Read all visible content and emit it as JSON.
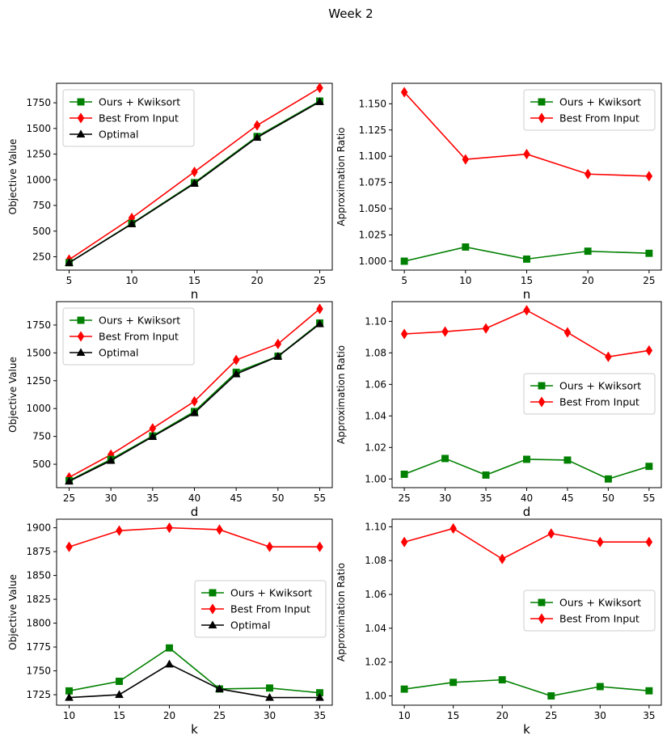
{
  "suptitle": "Week 2",
  "chart_data": [
    {
      "type": "line",
      "xlabel": "n",
      "ylabel": "Objective Value",
      "xlim": [
        4.0,
        26.0
      ],
      "ylim": [
        120,
        1940
      ],
      "xticks": [
        5,
        10,
        15,
        20,
        25
      ],
      "yticks": [
        250,
        500,
        750,
        1000,
        1250,
        1500,
        1750
      ],
      "x": [
        5,
        10,
        15,
        20,
        25
      ],
      "legend_loc": "upper-left",
      "series": [
        {
          "name": "Ours + Kwiksort",
          "color": "#008000",
          "marker": "square",
          "values": [
            192,
            574,
            972,
            1422,
            1767
          ]
        },
        {
          "name": "Best From Input",
          "color": "#ff0000",
          "marker": "diamond",
          "values": [
            222,
            628,
            1077,
            1530,
            1895
          ]
        },
        {
          "name": "Optimal",
          "color": "#000000",
          "marker": "triangle",
          "values": [
            191,
            570,
            964,
            1412,
            1760
          ]
        }
      ]
    },
    {
      "type": "line",
      "xlabel": "n",
      "ylabel": "Approximation Ratio",
      "xlim": [
        4.0,
        26.0
      ],
      "ylim": [
        0.9915,
        1.1695
      ],
      "xticks": [
        5,
        10,
        15,
        20,
        25
      ],
      "yticks": [
        1.0,
        1.025,
        1.05,
        1.075,
        1.1,
        1.125,
        1.15
      ],
      "ytick_decimals": 3,
      "x": [
        5,
        10,
        15,
        20,
        25
      ],
      "legend_loc": "upper-right",
      "series": [
        {
          "name": "Ours + Kwiksort",
          "color": "#008000",
          "marker": "square",
          "values": [
            1.0,
            1.0135,
            1.002,
            1.0095,
            1.0075
          ]
        },
        {
          "name": "Best From Input",
          "color": "#ff0000",
          "marker": "diamond",
          "values": [
            1.161,
            1.097,
            1.102,
            1.083,
            1.081
          ]
        }
      ]
    },
    {
      "type": "line",
      "xlabel": "d",
      "ylabel": "Objective Value",
      "xlim": [
        23.5,
        56.5
      ],
      "ylim": [
        290,
        1960
      ],
      "xticks": [
        25,
        30,
        35,
        40,
        45,
        50,
        55
      ],
      "yticks": [
        500,
        750,
        1000,
        1250,
        1500,
        1750
      ],
      "x": [
        25,
        30,
        35,
        40,
        45,
        50,
        55
      ],
      "legend_loc": "upper-left",
      "series": [
        {
          "name": "Ours + Kwiksort",
          "color": "#008000",
          "marker": "square",
          "values": [
            352,
            544,
            754,
            974,
            1326,
            1470,
            1768
          ]
        },
        {
          "name": "Best From Input",
          "color": "#ff0000",
          "marker": "diamond",
          "values": [
            382,
            586,
            822,
            1065,
            1436,
            1580,
            1895
          ]
        },
        {
          "name": "Optimal",
          "color": "#000000",
          "marker": "triangle",
          "values": [
            347,
            533,
            748,
            961,
            1310,
            1468,
            1760
          ]
        }
      ]
    },
    {
      "type": "line",
      "xlabel": "d",
      "ylabel": "Approximation Ratio",
      "xlim": [
        23.5,
        56.5
      ],
      "ylim": [
        0.9945,
        1.1125
      ],
      "xticks": [
        25,
        30,
        35,
        40,
        45,
        50,
        55
      ],
      "yticks": [
        1.0,
        1.02,
        1.04,
        1.06,
        1.08,
        1.1
      ],
      "ytick_decimals": 2,
      "x": [
        25,
        30,
        35,
        40,
        45,
        50,
        55
      ],
      "legend_loc": "center-right",
      "series": [
        {
          "name": "Ours + Kwiksort",
          "color": "#008000",
          "marker": "square",
          "values": [
            1.003,
            1.013,
            1.0025,
            1.0125,
            1.012,
            1.0,
            1.008
          ]
        },
        {
          "name": "Best From Input",
          "color": "#ff0000",
          "marker": "diamond",
          "values": [
            1.092,
            1.0935,
            1.0955,
            1.107,
            1.093,
            1.0775,
            1.0815
          ]
        }
      ]
    },
    {
      "type": "line",
      "xlabel": "k",
      "ylabel": "Objective Value",
      "xlim": [
        8.75,
        36.25
      ],
      "ylim": [
        1714,
        1909
      ],
      "xticks": [
        10,
        15,
        20,
        25,
        30,
        35
      ],
      "yticks": [
        1725,
        1750,
        1775,
        1800,
        1825,
        1850,
        1875,
        1900
      ],
      "x": [
        10,
        15,
        20,
        25,
        30,
        35
      ],
      "legend_loc": "center-right",
      "series": [
        {
          "name": "Ours + Kwiksort",
          "color": "#008000",
          "marker": "square",
          "values": [
            1729,
            1739,
            1774,
            1731,
            1732,
            1727
          ]
        },
        {
          "name": "Best From Input",
          "color": "#ff0000",
          "marker": "diamond",
          "values": [
            1880,
            1897,
            1900,
            1898,
            1880,
            1880
          ]
        },
        {
          "name": "Optimal",
          "color": "#000000",
          "marker": "triangle",
          "values": [
            1722,
            1725,
            1757,
            1731,
            1722,
            1722
          ]
        }
      ]
    },
    {
      "type": "line",
      "xlabel": "k",
      "ylabel": "Approximation Ratio",
      "xlim": [
        8.75,
        36.25
      ],
      "ylim": [
        0.9945,
        1.1045
      ],
      "xticks": [
        10,
        15,
        20,
        25,
        30,
        35
      ],
      "yticks": [
        1.0,
        1.02,
        1.04,
        1.06,
        1.08,
        1.1
      ],
      "ytick_decimals": 2,
      "x": [
        10,
        15,
        20,
        25,
        30,
        35
      ],
      "legend_loc": "center-right",
      "series": [
        {
          "name": "Ours + Kwiksort",
          "color": "#008000",
          "marker": "square",
          "values": [
            1.004,
            1.008,
            1.0095,
            1.0,
            1.0055,
            1.003
          ]
        },
        {
          "name": "Best From Input",
          "color": "#ff0000",
          "marker": "diamond",
          "values": [
            1.091,
            1.099,
            1.081,
            1.096,
            1.091,
            1.091
          ]
        }
      ]
    }
  ]
}
